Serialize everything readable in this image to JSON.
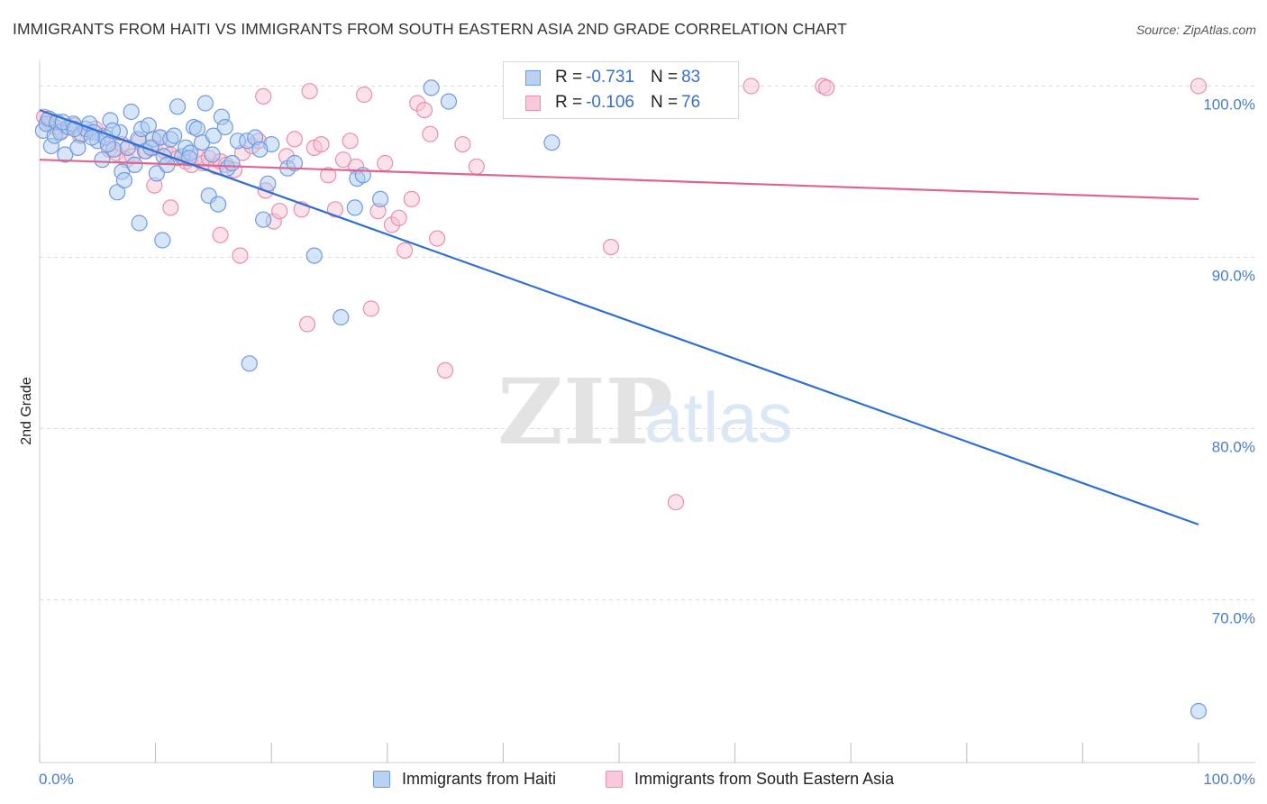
{
  "header": {
    "title": "IMMIGRANTS FROM HAITI VS IMMIGRANTS FROM SOUTH EASTERN ASIA 2ND GRADE CORRELATION CHART",
    "source": "Source: ZipAtlas.com"
  },
  "watermark": {
    "zip": "ZIP",
    "atlas": "atlas"
  },
  "legend": {
    "rows": [
      {
        "r_label": "R = ",
        "r_value": "-0.731",
        "n_label": "N = ",
        "n_value": "83"
      },
      {
        "r_label": "R = ",
        "r_value": "-0.106",
        "n_label": "N = ",
        "n_value": "76"
      }
    ]
  },
  "colors": {
    "haiti_fill": "#aecbf0",
    "haiti_stroke": "#6e9be0",
    "haiti_line": "#2f6fd4",
    "sea_fill": "#f7c3d6",
    "sea_stroke": "#e88fb0",
    "sea_line": "#e0648f",
    "tick_label": "#4a7cc9",
    "grid": "#dcdcdc"
  },
  "chart_data": {
    "type": "scatter",
    "title": "IMMIGRANTS FROM HAITI VS IMMIGRANTS FROM SOUTH EASTERN ASIA 2ND GRADE CORRELATION CHART",
    "xlabel": "",
    "ylabel": "2nd Grade",
    "xlim": [
      0,
      100
    ],
    "ylim": [
      60.5,
      101.5
    ],
    "x_tick_labels": [
      "0.0%",
      "100.0%"
    ],
    "y_ticks": [
      70,
      80,
      90,
      100
    ],
    "y_tick_labels": [
      "70.0%",
      "80.0%",
      "90.0%",
      "100.0%"
    ],
    "grid": true,
    "legend_position": "top-center",
    "series": [
      {
        "name": "Immigrants from Haiti",
        "R": -0.731,
        "N": 83,
        "trend": {
          "x": [
            0,
            100
          ],
          "y": [
            98.6,
            74.4
          ]
        },
        "points": [
          [
            0.3,
            97.4
          ],
          [
            0.6,
            97.8
          ],
          [
            0.8,
            98.1
          ],
          [
            1.0,
            96.5
          ],
          [
            1.3,
            97.1
          ],
          [
            1.5,
            97.9
          ],
          [
            1.8,
            97.3
          ],
          [
            2.2,
            96.0
          ],
          [
            2.5,
            97.6
          ],
          [
            2.9,
            97.8
          ],
          [
            3.3,
            96.4
          ],
          [
            3.6,
            97.2
          ],
          [
            4.0,
            97.5
          ],
          [
            4.3,
            97.8
          ],
          [
            4.7,
            97.3
          ],
          [
            5.0,
            96.8
          ],
          [
            5.4,
            95.7
          ],
          [
            5.7,
            97.0
          ],
          [
            6.1,
            98.0
          ],
          [
            6.4,
            96.3
          ],
          [
            6.7,
            93.8
          ],
          [
            6.9,
            97.3
          ],
          [
            7.1,
            95.0
          ],
          [
            7.3,
            94.5
          ],
          [
            7.6,
            96.4
          ],
          [
            7.9,
            98.5
          ],
          [
            8.2,
            95.4
          ],
          [
            8.5,
            96.9
          ],
          [
            8.8,
            97.5
          ],
          [
            8.6,
            92.0
          ],
          [
            9.1,
            96.2
          ],
          [
            9.4,
            97.7
          ],
          [
            9.8,
            96.9
          ],
          [
            10.1,
            94.9
          ],
          [
            10.4,
            97.0
          ],
          [
            10.7,
            95.9
          ],
          [
            11.0,
            95.4
          ],
          [
            11.3,
            96.9
          ],
          [
            10.6,
            91.0
          ],
          [
            11.6,
            97.1
          ],
          [
            11.9,
            98.8
          ],
          [
            12.3,
            95.9
          ],
          [
            12.6,
            96.4
          ],
          [
            13.0,
            96.1
          ],
          [
            13.3,
            97.6
          ],
          [
            13.6,
            97.5
          ],
          [
            14.0,
            96.7
          ],
          [
            14.3,
            99.0
          ],
          [
            14.6,
            93.6
          ],
          [
            15.0,
            97.1
          ],
          [
            15.4,
            93.1
          ],
          [
            15.7,
            98.2
          ],
          [
            16.2,
            95.2
          ],
          [
            16.6,
            95.5
          ],
          [
            17.1,
            96.8
          ],
          [
            17.9,
            96.8
          ],
          [
            18.6,
            97.0
          ],
          [
            19.3,
            92.2
          ],
          [
            19.7,
            94.3
          ],
          [
            20.0,
            96.6
          ],
          [
            21.4,
            95.2
          ],
          [
            23.7,
            90.1
          ],
          [
            27.4,
            94.6
          ],
          [
            27.9,
            94.8
          ],
          [
            27.2,
            92.9
          ],
          [
            29.4,
            93.4
          ],
          [
            33.8,
            99.9
          ],
          [
            35.3,
            99.1
          ],
          [
            44.2,
            96.7
          ],
          [
            18.1,
            83.8
          ],
          [
            26.0,
            86.5
          ],
          [
            2.0,
            97.9
          ],
          [
            3.0,
            97.5
          ],
          [
            4.5,
            97.0
          ],
          [
            5.9,
            96.6
          ],
          [
            6.3,
            97.4
          ],
          [
            9.6,
            96.4
          ],
          [
            12.9,
            95.8
          ],
          [
            14.9,
            96.0
          ],
          [
            16.0,
            97.6
          ],
          [
            19.0,
            96.3
          ],
          [
            22.0,
            95.5
          ],
          [
            100.0,
            63.5
          ]
        ]
      },
      {
        "name": "Immigrants from South Eastern Asia",
        "R": -0.106,
        "N": 76,
        "trend": {
          "x": [
            0,
            100
          ],
          "y": [
            95.7,
            93.4
          ]
        },
        "points": [
          [
            0.4,
            98.2
          ],
          [
            0.7,
            98.0
          ],
          [
            1.0,
            97.8
          ],
          [
            1.4,
            97.6
          ],
          [
            1.9,
            97.4
          ],
          [
            2.5,
            97.6
          ],
          [
            3.0,
            97.7
          ],
          [
            3.5,
            97.1
          ],
          [
            4.2,
            97.3
          ],
          [
            4.8,
            97.5
          ],
          [
            5.5,
            97.1
          ],
          [
            6.0,
            96.3
          ],
          [
            6.6,
            96.1
          ],
          [
            7.1,
            96.6
          ],
          [
            7.5,
            95.7
          ],
          [
            8.0,
            95.9
          ],
          [
            8.6,
            96.8
          ],
          [
            9.2,
            96.2
          ],
          [
            9.9,
            96.4
          ],
          [
            10.4,
            97.0
          ],
          [
            10.8,
            96.2
          ],
          [
            11.3,
            96.0
          ],
          [
            11.9,
            95.8
          ],
          [
            12.6,
            95.6
          ],
          [
            13.1,
            95.4
          ],
          [
            13.6,
            95.9
          ],
          [
            14.1,
            95.5
          ],
          [
            14.6,
            95.8
          ],
          [
            15.2,
            95.3
          ],
          [
            15.6,
            95.6
          ],
          [
            16.1,
            95.4
          ],
          [
            16.8,
            95.1
          ],
          [
            17.5,
            96.1
          ],
          [
            18.3,
            96.5
          ],
          [
            18.9,
            96.8
          ],
          [
            19.5,
            93.9
          ],
          [
            20.2,
            92.1
          ],
          [
            20.7,
            92.7
          ],
          [
            21.3,
            95.9
          ],
          [
            22.0,
            96.9
          ],
          [
            22.6,
            92.8
          ],
          [
            23.1,
            86.1
          ],
          [
            23.7,
            96.4
          ],
          [
            24.3,
            96.6
          ],
          [
            24.9,
            94.8
          ],
          [
            25.5,
            92.8
          ],
          [
            26.2,
            95.7
          ],
          [
            26.8,
            96.8
          ],
          [
            27.3,
            95.3
          ],
          [
            28.0,
            99.5
          ],
          [
            28.6,
            87.0
          ],
          [
            29.2,
            92.7
          ],
          [
            29.8,
            95.5
          ],
          [
            30.4,
            91.9
          ],
          [
            31.0,
            92.3
          ],
          [
            31.5,
            90.4
          ],
          [
            32.1,
            93.4
          ],
          [
            32.6,
            99.0
          ],
          [
            33.2,
            98.6
          ],
          [
            33.7,
            97.2
          ],
          [
            34.3,
            91.1
          ],
          [
            35.0,
            83.4
          ],
          [
            36.5,
            96.6
          ],
          [
            37.7,
            95.3
          ],
          [
            49.3,
            90.6
          ],
          [
            54.9,
            75.7
          ],
          [
            61.4,
            100.0
          ],
          [
            67.6,
            100.0
          ],
          [
            67.9,
            99.9
          ],
          [
            100.0,
            100.0
          ],
          [
            9.9,
            94.2
          ],
          [
            11.3,
            92.9
          ],
          [
            15.6,
            91.3
          ],
          [
            17.3,
            90.1
          ],
          [
            19.3,
            99.4
          ],
          [
            23.3,
            99.7
          ]
        ]
      }
    ]
  },
  "bottom_legend": {
    "series1": "Immigrants from Haiti",
    "series2": "Immigrants from South Eastern Asia"
  },
  "axis": {
    "y_title": "2nd Grade"
  }
}
